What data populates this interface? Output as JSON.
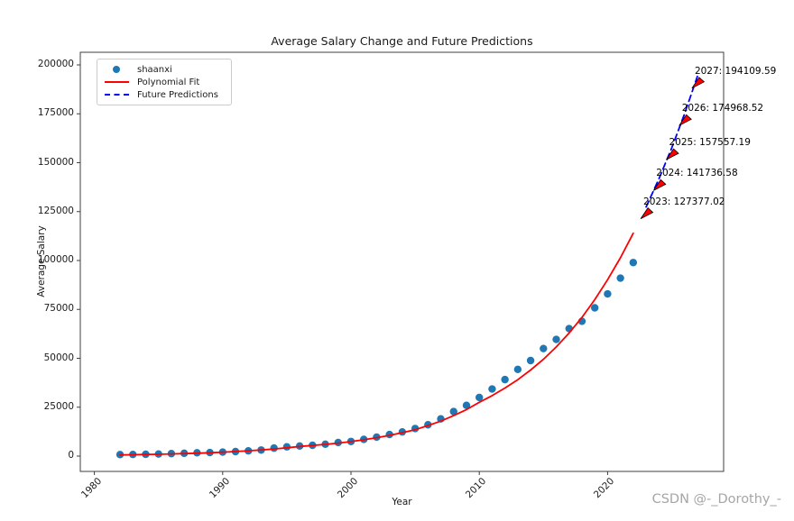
{
  "watermark": {
    "text": "CSDN @-_Dorothy_-"
  },
  "chart_data": {
    "type": "scatter",
    "title": "Average Salary Change and Future Predictions",
    "xlabel": "Year",
    "ylabel": "Average Salary",
    "x_ticks": [
      1980,
      1990,
      2000,
      2010,
      2020
    ],
    "y_ticks": [
      0,
      25000,
      50000,
      75000,
      100000,
      125000,
      150000,
      175000,
      200000
    ],
    "xlim": [
      1978.8,
      2029.2
    ],
    "ylim": [
      -7800,
      206500
    ],
    "grid": false,
    "legend": {
      "position": "upper-left",
      "entries": [
        {
          "label": "shaanxi",
          "marker": "dot",
          "color": "#1f77b4"
        },
        {
          "label": "Polynomial Fit",
          "marker": "line",
          "color": "#ff0000"
        },
        {
          "label": "Future Predictions",
          "marker": "dash",
          "color": "#0000ff"
        }
      ]
    },
    "series": [
      {
        "name": "shaanxi",
        "type": "scatter",
        "color": "#1f77b4",
        "x": [
          1982,
          1983,
          1984,
          1985,
          1986,
          1987,
          1988,
          1989,
          1990,
          1991,
          1992,
          1993,
          1994,
          1995,
          1996,
          1997,
          1998,
          1999,
          2000,
          2001,
          2002,
          2003,
          2004,
          2005,
          2006,
          2007,
          2008,
          2009,
          2010,
          2011,
          2012,
          2013,
          2014,
          2015,
          2016,
          2017,
          2018,
          2019,
          2020,
          2021,
          2022
        ],
        "y": [
          784,
          836,
          934,
          1068,
          1264,
          1451,
          1708,
          1812,
          2033,
          2307,
          2665,
          3104,
          4086,
          4737,
          5155,
          5532,
          6083,
          6931,
          7481,
          8559,
          9711,
          11025,
          12366,
          14101,
          16018,
          19029,
          22749,
          25942,
          29979,
          34299,
          39113,
          44330,
          48853,
          54994,
          59637,
          65181,
          68936,
          75811,
          82910,
          90996,
          98954
        ]
      },
      {
        "name": "Polynomial Fit",
        "type": "line",
        "color": "#ff0000",
        "x": [
          1982,
          1983,
          1984,
          1985,
          1986,
          1987,
          1988,
          1989,
          1990,
          1991,
          1992,
          1993,
          1994,
          1995,
          1996,
          1997,
          1998,
          1999,
          2000,
          2001,
          2002,
          2003,
          2004,
          2005,
          2006,
          2007,
          2008,
          2009,
          2010,
          2011,
          2012,
          2013,
          2014,
          2015,
          2016,
          2017,
          2018,
          2019,
          2020,
          2021,
          2022
        ],
        "y": [
          600,
          700,
          810,
          940,
          1090,
          1270,
          1480,
          1720,
          2000,
          2330,
          2700,
          3140,
          3650,
          4250,
          4940,
          5440,
          6000,
          6650,
          7400,
          8350,
          9400,
          10600,
          12000,
          13500,
          15600,
          17900,
          20700,
          23800,
          27500,
          30900,
          34800,
          39100,
          44000,
          49500,
          55800,
          62900,
          70900,
          80000,
          90200,
          101400,
          113900
        ]
      },
      {
        "name": "Future Predictions",
        "type": "dashed-line",
        "color": "#0000ff",
        "x": [
          2023,
          2024,
          2025,
          2026,
          2027
        ],
        "y": [
          127377.02,
          141736.58,
          157557.19,
          174968.52,
          194109.59
        ]
      }
    ],
    "annotations": [
      {
        "text": "2023: 127377.02",
        "x": 2023,
        "y": 127377.02
      },
      {
        "text": "2024: 141736.58",
        "x": 2024,
        "y": 141736.58
      },
      {
        "text": "2025: 157557.19",
        "x": 2025,
        "y": 157557.19
      },
      {
        "text": "2026: 174968.52",
        "x": 2026,
        "y": 174968.52
      },
      {
        "text": "2027: 194109.59",
        "x": 2027,
        "y": 194109.59
      }
    ],
    "annotation_arrow": {
      "fill": "#ff0000",
      "edge": "#000000"
    },
    "spine_color": "#3f3f3f"
  }
}
